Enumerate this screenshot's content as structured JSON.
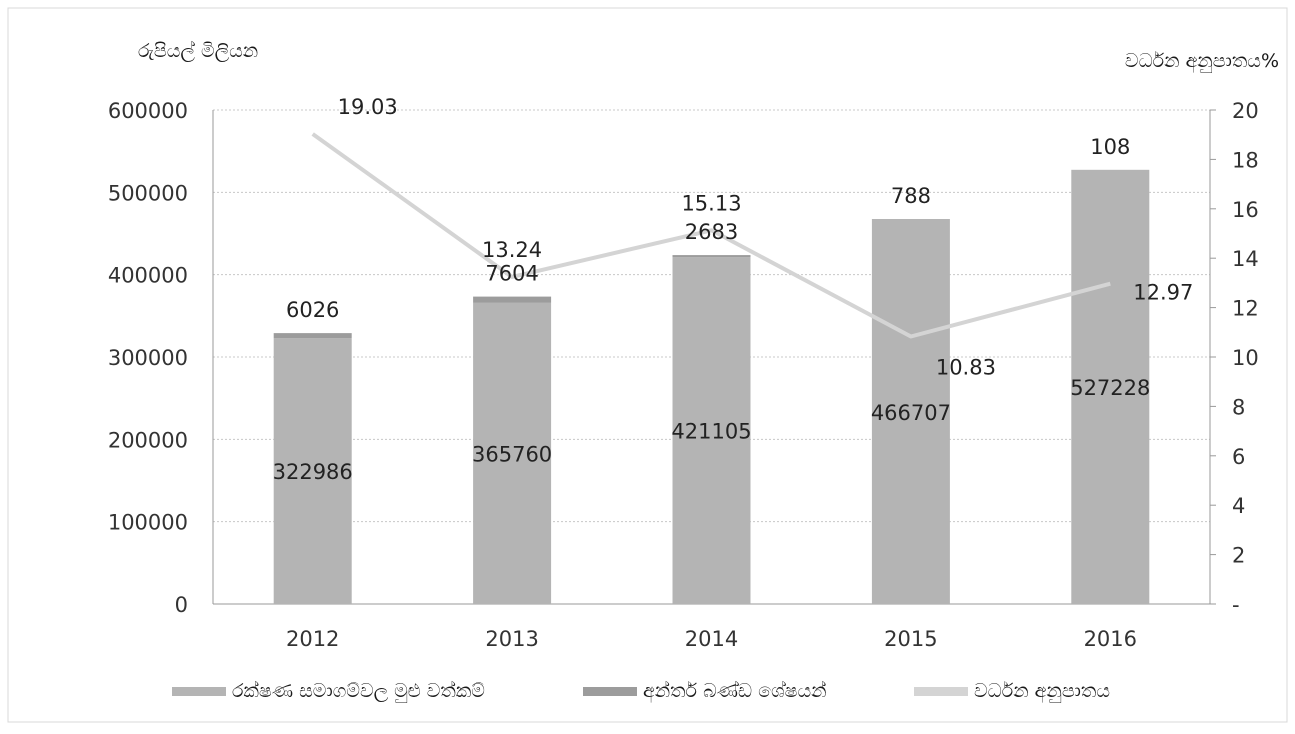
{
  "chart_data": {
    "type": "bar",
    "categories": [
      "2012",
      "2013",
      "2014",
      "2015",
      "2016"
    ],
    "series": [
      {
        "name": "රක්ෂණ සමාගම්වල මුළු වත්කම්",
        "kind": "bar-stacked",
        "axis": "left",
        "values": [
          322986,
          365760,
          421105,
          466707,
          527228
        ],
        "color": "#b4b4b4"
      },
      {
        "name": "අන්තර් බණ්ඩ ශේෂයන්",
        "kind": "bar-stacked",
        "axis": "left",
        "values": [
          6026,
          7604,
          2683,
          788,
          108
        ],
        "color": "#9c9c9c"
      },
      {
        "name": "වර්ධන අනුපාතය",
        "kind": "line",
        "axis": "right",
        "values": [
          19.03,
          13.24,
          15.13,
          10.83,
          12.97
        ],
        "color": "#d4d4d4"
      }
    ],
    "ylabel_left": "රුපියල් මිලියන",
    "ylabel_right": "වර්ධන අනුපාතය%",
    "ylim_left": [
      0,
      600000
    ],
    "ylim_right": [
      0,
      20
    ],
    "yticks_left": [
      "0",
      "100000",
      "200000",
      "300000",
      "400000",
      "500000",
      "600000"
    ],
    "yticks_right": [
      "-",
      "2",
      "4",
      "6",
      "8",
      "10",
      "12",
      "14",
      "16",
      "18",
      "20"
    ],
    "legend_position": "bottom",
    "grid": true
  }
}
